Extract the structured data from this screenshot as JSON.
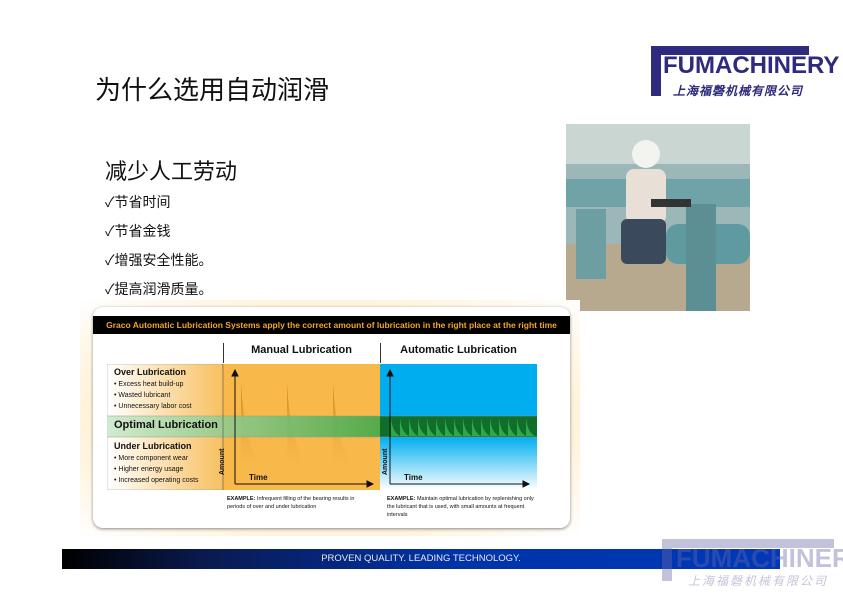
{
  "title": "为什么选用自动润滑",
  "logo": {
    "en": "FUMACHINERY",
    "cn": "上海福磬机械有限公司"
  },
  "subheading": "减少人工劳动",
  "bullets": [
    "✓节省时间",
    "✓节省金钱",
    "✓增强安全性能。",
    "✓提高润滑质量。"
  ],
  "infographic": {
    "header": "Graco Automatic Lubrication Systems apply the correct amount of lubrication in the right place at the right time",
    "columns": [
      "Manual Lubrication",
      "Automatic Lubrication"
    ],
    "rows": {
      "over": {
        "title": "Over Lubrication",
        "items": [
          "• Excess heat build-up",
          "• Wasted lubricant",
          "• Unnecessary labor cost"
        ]
      },
      "optimal": {
        "title": "Optimal Lubrication"
      },
      "under": {
        "title": "Under Lubrication",
        "items": [
          "• More component wear",
          "• Higher energy usage",
          "• Increased operating costs"
        ]
      }
    },
    "axis": {
      "y": "Amount",
      "x": "Time"
    },
    "examples": [
      {
        "label": "EXAMPLE:",
        "text": "Infrequent filling of the bearing results in periods of over and under lubrication"
      },
      {
        "label": "EXAMPLE:",
        "text": "Maintain optimal lubrication by replenishing only the lubricant that is used, with small amounts at frequent intervals"
      }
    ]
  },
  "footer": "PROVEN QUALITY. LEADING TECHNOLOGY.",
  "colors": {
    "brand": "#2e2a7d",
    "orange": "#f8b84a",
    "blue": "#00aeef",
    "green": "#1a8a3a"
  }
}
